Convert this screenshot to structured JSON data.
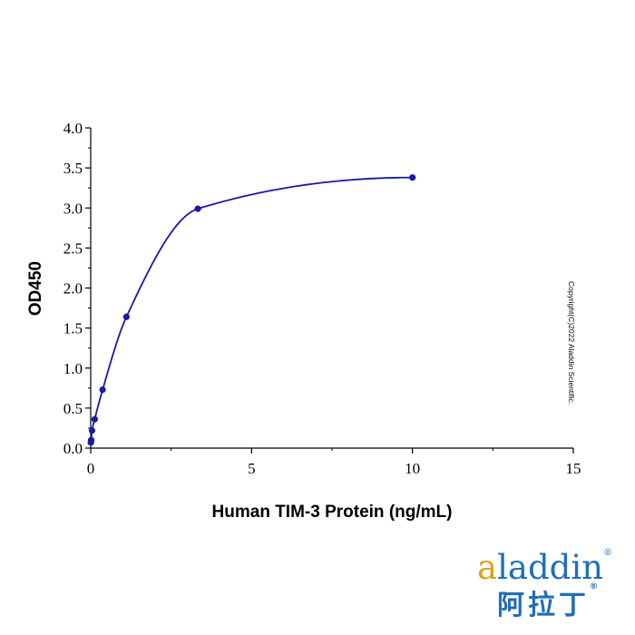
{
  "chart_data": {
    "type": "scatter",
    "xlabel": "Human TIM-3 Protein (ng/mL)",
    "ylabel": "OD450",
    "xlim": [
      0,
      15
    ],
    "ylim": [
      0,
      4.0
    ],
    "x_ticks": [
      "0",
      "5",
      "10",
      "15"
    ],
    "y_ticks": [
      "0.0",
      "0.5",
      "1.0",
      "1.5",
      "2.0",
      "2.5",
      "3.0",
      "3.5",
      "4.0"
    ],
    "grid": false,
    "fit_curve": true,
    "color": "#1a1aa6",
    "series": [
      {
        "points": [
          {
            "x": 0.005,
            "y": 0.07
          },
          {
            "x": 0.014,
            "y": 0.1
          },
          {
            "x": 0.041,
            "y": 0.22
          },
          {
            "x": 0.123,
            "y": 0.36
          },
          {
            "x": 0.37,
            "y": 0.73
          },
          {
            "x": 1.11,
            "y": 1.64
          },
          {
            "x": 3.33,
            "y": 2.99
          },
          {
            "x": 10.0,
            "y": 3.38
          }
        ]
      }
    ],
    "annotation": "Copyright(C)2022 Aladdin Scientific."
  },
  "logo": {
    "latin": "aladdin",
    "chinese": "阿拉丁",
    "registered": "®"
  }
}
